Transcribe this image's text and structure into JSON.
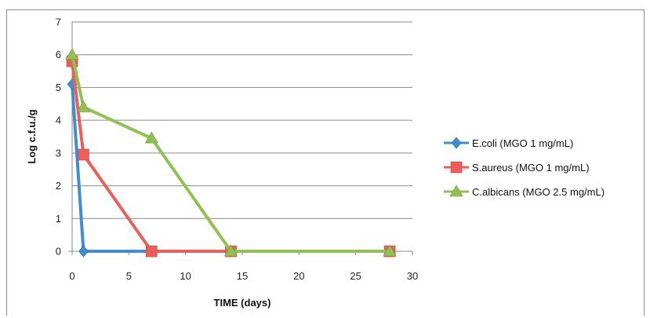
{
  "chart_data": {
    "type": "line",
    "title": "",
    "xlabel": "TIME (days)",
    "ylabel": "Log c.f.u./g",
    "xlim": [
      0,
      30
    ],
    "ylim": [
      0,
      7
    ],
    "xticks": [
      0,
      5,
      10,
      15,
      20,
      25,
      30
    ],
    "yticks": [
      0,
      1,
      2,
      3,
      4,
      5,
      6,
      7
    ],
    "grid": "horizontal",
    "legend_position": "right",
    "series": [
      {
        "name": "E.coli (MGO 1 mg/mL)",
        "color": "#3f8fd0",
        "marker": "diamond",
        "points": [
          [
            0,
            5.1
          ],
          [
            1,
            0
          ],
          [
            7,
            0
          ],
          [
            14,
            0
          ],
          [
            28,
            0
          ]
        ]
      },
      {
        "name": "S.aureus (MGO 1 mg/mL)",
        "color": "#ec5e59",
        "marker": "square",
        "points": [
          [
            0,
            5.8
          ],
          [
            1,
            2.95
          ],
          [
            7,
            0
          ],
          [
            14,
            0
          ],
          [
            28,
            0
          ]
        ]
      },
      {
        "name": "C.albicans (MGO 2.5 mg/mL)",
        "color": "#8fc24f",
        "marker": "triangle",
        "points": [
          [
            0,
            6.0
          ],
          [
            1,
            4.4
          ],
          [
            7,
            3.45
          ],
          [
            14,
            0
          ],
          [
            28,
            0
          ]
        ]
      }
    ]
  }
}
